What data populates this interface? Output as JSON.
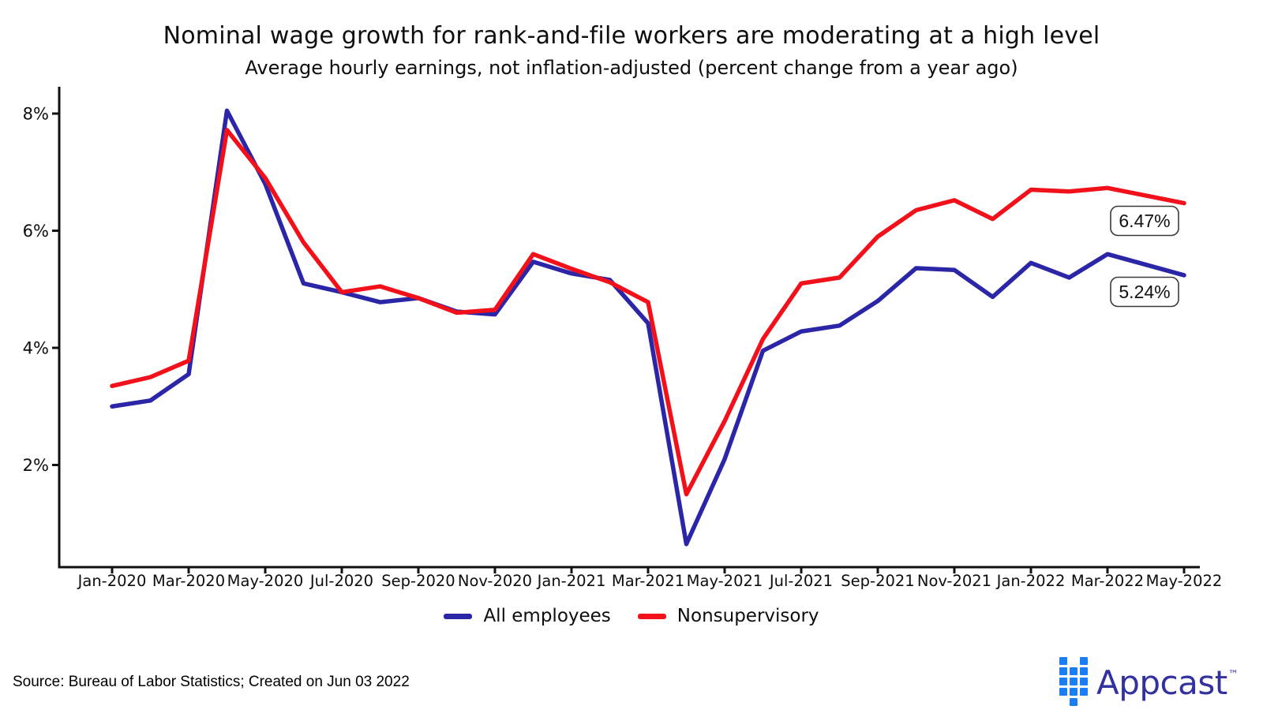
{
  "chart_data": {
    "type": "line",
    "title": "Nominal wage growth for rank-and-file workers are moderating at a high level",
    "subtitle": "Average hourly earnings, not inflation-adjusted (percent change from a year ago)",
    "categories": [
      "Jan-2020",
      "Feb-2020",
      "Mar-2020",
      "Apr-2020",
      "May-2020",
      "Jun-2020",
      "Jul-2020",
      "Aug-2020",
      "Sep-2020",
      "Oct-2020",
      "Nov-2020",
      "Dec-2020",
      "Jan-2021",
      "Feb-2021",
      "Mar-2021",
      "Apr-2021",
      "May-2021",
      "Jun-2021",
      "Jul-2021",
      "Aug-2021",
      "Sep-2021",
      "Oct-2021",
      "Nov-2021",
      "Dec-2021",
      "Jan-2022",
      "Feb-2022",
      "Mar-2022",
      "Apr-2022",
      "May-2022"
    ],
    "x_tick_labels": [
      "Jan-2020",
      "Mar-2020",
      "May-2020",
      "Jul-2020",
      "Sep-2020",
      "Nov-2020",
      "Jan-2021",
      "Mar-2021",
      "May-2021",
      "Jul-2021",
      "Sep-2021",
      "Nov-2021",
      "Jan-2022",
      "Mar-2022",
      "May-2022"
    ],
    "yticks": [
      {
        "label": "2%",
        "value": 2
      },
      {
        "label": "4%",
        "value": 4
      },
      {
        "label": "6%",
        "value": 6
      },
      {
        "label": "8%",
        "value": 8
      }
    ],
    "ylim": [
      0.25,
      8.45
    ],
    "grid": false,
    "legend_position": "bottom",
    "series": [
      {
        "name": "All employees",
        "color": "#2b25a8",
        "values": [
          3.0,
          3.1,
          3.55,
          8.05,
          6.8,
          5.1,
          4.95,
          4.78,
          4.85,
          4.62,
          4.57,
          5.47,
          5.27,
          5.16,
          4.42,
          0.65,
          2.1,
          3.95,
          4.28,
          4.38,
          4.8,
          5.36,
          5.33,
          4.87,
          5.45,
          5.2,
          5.6,
          5.42,
          5.24
        ]
      },
      {
        "name": "Nonsupervisory",
        "color": "#f2101a",
        "values": [
          3.35,
          3.5,
          3.78,
          7.72,
          6.9,
          5.8,
          4.95,
          5.05,
          4.85,
          4.6,
          4.65,
          5.6,
          5.35,
          5.12,
          4.78,
          1.5,
          2.75,
          4.15,
          5.1,
          5.2,
          5.9,
          6.35,
          6.52,
          6.2,
          6.7,
          6.67,
          6.73,
          6.6,
          6.47
        ]
      }
    ],
    "callouts": [
      {
        "text": "6.47%",
        "series": "Nonsupervisory"
      },
      {
        "text": "5.24%",
        "series": "All employees"
      }
    ]
  },
  "footer": {
    "source": "Source: Bureau of Labor Statistics; Created on Jun 03 2022"
  },
  "branding": {
    "name": "Appcast",
    "trademark": "™",
    "text_color": "#33319e",
    "mark_color": "#1b7ef2"
  }
}
